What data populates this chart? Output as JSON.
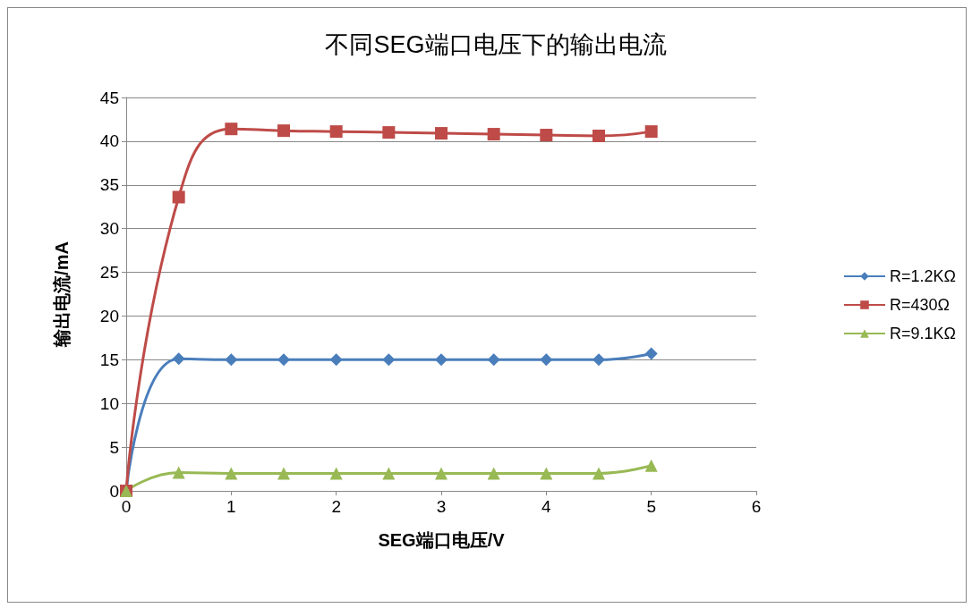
{
  "chart_data": {
    "type": "line",
    "title": "不同SEG端口电压下的输出电流",
    "xlabel": "SEG端口电压/V",
    "ylabel": "输出电流/mA",
    "x": [
      0,
      0.5,
      1,
      1.5,
      2,
      2.5,
      3,
      3.5,
      4,
      4.5,
      5
    ],
    "series": [
      {
        "name": "R=1.2KΩ",
        "color": "#4a7ebb",
        "marker": "diamond",
        "values": [
          0,
          15.1,
          15.0,
          15.0,
          15.0,
          15.0,
          15.0,
          15.0,
          15.0,
          15.0,
          15.7
        ]
      },
      {
        "name": "R=430Ω",
        "color": "#be4b48",
        "marker": "square",
        "values": [
          0,
          33.6,
          41.4,
          41.2,
          41.1,
          41.0,
          40.9,
          40.8,
          40.7,
          40.6,
          41.1
        ]
      },
      {
        "name": "R=9.1KΩ",
        "color": "#98b954",
        "marker": "triangle",
        "values": [
          0,
          2.1,
          2.0,
          2.0,
          2.0,
          2.0,
          2.0,
          2.0,
          2.0,
          2.0,
          2.9
        ]
      }
    ],
    "xlim": [
      0,
      6
    ],
    "xticks": [
      0,
      1,
      2,
      3,
      4,
      5,
      6
    ],
    "ylim": [
      0,
      45
    ],
    "yticks": [
      0,
      5,
      10,
      15,
      20,
      25,
      30,
      35,
      40,
      45
    ],
    "grid": "y",
    "legend": "right"
  }
}
